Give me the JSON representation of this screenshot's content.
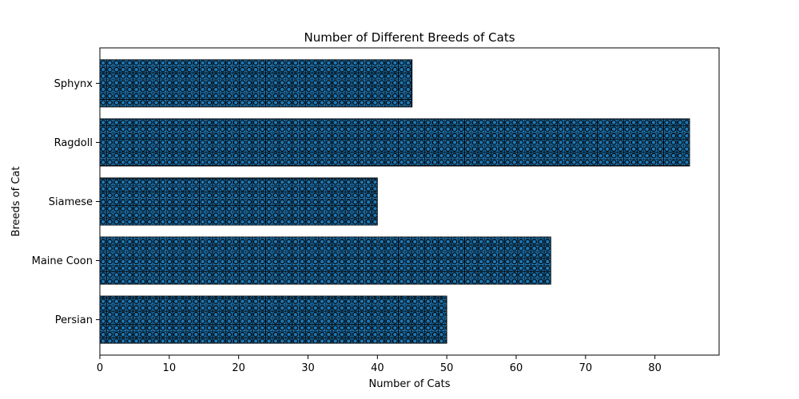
{
  "chart_data": {
    "type": "bar",
    "orientation": "horizontal",
    "title": "Number of Different Breeds of Cats",
    "xlabel": "Number of Cats",
    "ylabel": "Breeds of Cat",
    "categories": [
      "Persian",
      "Maine Coon",
      "Siamese",
      "Ragdoll",
      "Sphynx"
    ],
    "values": [
      50,
      65,
      40,
      85,
      45
    ],
    "xlim": [
      0,
      89.25
    ],
    "xticks": [
      0,
      10,
      20,
      30,
      40,
      50,
      60,
      70,
      80
    ],
    "grid": false,
    "bar_color": "#1f77b4",
    "hatch_color": "#000000",
    "hatch": "grid-with-circles"
  }
}
